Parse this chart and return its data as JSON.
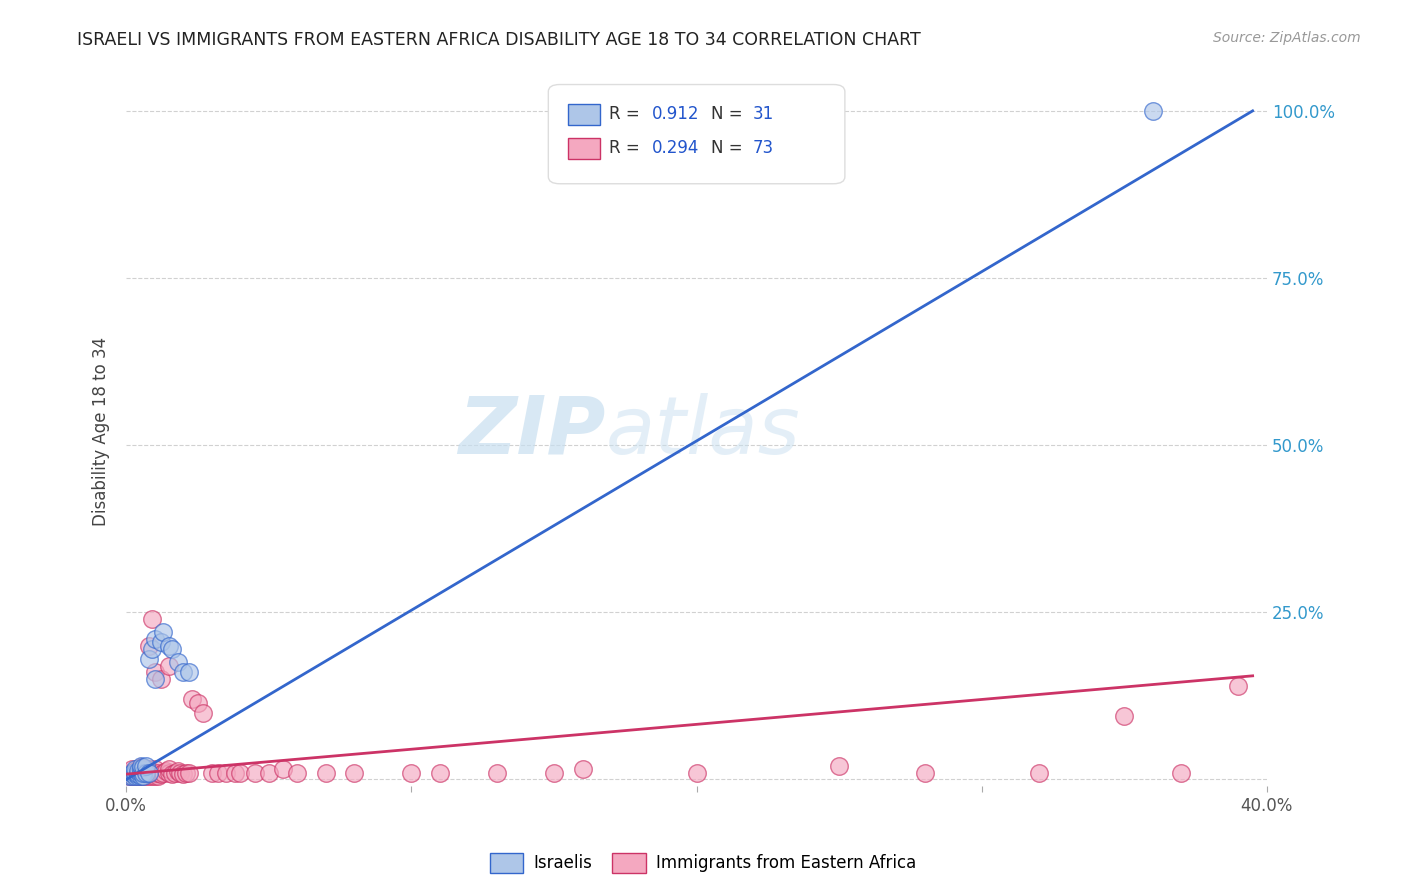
{
  "title": "ISRAELI VS IMMIGRANTS FROM EASTERN AFRICA DISABILITY AGE 18 TO 34 CORRELATION CHART",
  "source": "Source: ZipAtlas.com",
  "ylabel": "Disability Age 18 to 34",
  "xlim": [
    0.0,
    0.4
  ],
  "ylim": [
    -0.01,
    1.05
  ],
  "israelis_color": "#aec6e8",
  "immigrants_color": "#f4a8c0",
  "israelis_line_color": "#3366cc",
  "immigrants_line_color": "#cc3366",
  "legend_R_israelis": "0.912",
  "legend_N_israelis": "31",
  "legend_R_immigrants": "0.294",
  "legend_N_immigrants": "73",
  "watermark_zip": "ZIP",
  "watermark_atlas": "atlas",
  "israelis_x": [
    0.001,
    0.002,
    0.002,
    0.003,
    0.003,
    0.003,
    0.004,
    0.004,
    0.004,
    0.005,
    0.005,
    0.005,
    0.005,
    0.006,
    0.006,
    0.006,
    0.007,
    0.007,
    0.008,
    0.008,
    0.009,
    0.01,
    0.01,
    0.012,
    0.013,
    0.015,
    0.016,
    0.018,
    0.02,
    0.022,
    0.36
  ],
  "israelis_y": [
    0.005,
    0.005,
    0.01,
    0.005,
    0.01,
    0.015,
    0.005,
    0.008,
    0.012,
    0.005,
    0.01,
    0.015,
    0.02,
    0.005,
    0.01,
    0.018,
    0.01,
    0.02,
    0.01,
    0.18,
    0.195,
    0.15,
    0.21,
    0.205,
    0.22,
    0.2,
    0.195,
    0.175,
    0.16,
    0.16,
    1.0
  ],
  "immigrants_x": [
    0.001,
    0.001,
    0.002,
    0.002,
    0.002,
    0.003,
    0.003,
    0.003,
    0.004,
    0.004,
    0.004,
    0.005,
    0.005,
    0.005,
    0.006,
    0.006,
    0.006,
    0.007,
    0.007,
    0.007,
    0.008,
    0.008,
    0.008,
    0.009,
    0.009,
    0.01,
    0.01,
    0.01,
    0.011,
    0.011,
    0.012,
    0.013,
    0.014,
    0.015,
    0.015,
    0.016,
    0.017,
    0.018,
    0.019,
    0.02,
    0.021,
    0.022,
    0.023,
    0.025,
    0.027,
    0.03,
    0.032,
    0.035,
    0.038,
    0.04,
    0.045,
    0.05,
    0.055,
    0.06,
    0.07,
    0.08,
    0.1,
    0.11,
    0.13,
    0.15,
    0.16,
    0.2,
    0.25,
    0.28,
    0.32,
    0.35,
    0.37,
    0.39,
    0.008,
    0.009,
    0.01,
    0.012,
    0.015
  ],
  "immigrants_y": [
    0.005,
    0.01,
    0.005,
    0.008,
    0.015,
    0.005,
    0.008,
    0.012,
    0.005,
    0.01,
    0.015,
    0.005,
    0.01,
    0.018,
    0.005,
    0.01,
    0.015,
    0.005,
    0.01,
    0.015,
    0.005,
    0.01,
    0.015,
    0.005,
    0.01,
    0.005,
    0.01,
    0.015,
    0.005,
    0.01,
    0.008,
    0.01,
    0.012,
    0.01,
    0.015,
    0.008,
    0.01,
    0.012,
    0.01,
    0.008,
    0.01,
    0.01,
    0.12,
    0.115,
    0.1,
    0.01,
    0.01,
    0.01,
    0.01,
    0.01,
    0.01,
    0.01,
    0.015,
    0.01,
    0.01,
    0.01,
    0.01,
    0.01,
    0.01,
    0.01,
    0.015,
    0.01,
    0.02,
    0.01,
    0.01,
    0.095,
    0.01,
    0.14,
    0.2,
    0.24,
    0.16,
    0.15,
    0.17
  ],
  "blue_line_x": [
    0.0,
    0.395
  ],
  "blue_line_y": [
    0.0,
    1.0
  ],
  "pink_line_x": [
    0.0,
    0.395
  ],
  "pink_line_y": [
    0.008,
    0.155
  ]
}
